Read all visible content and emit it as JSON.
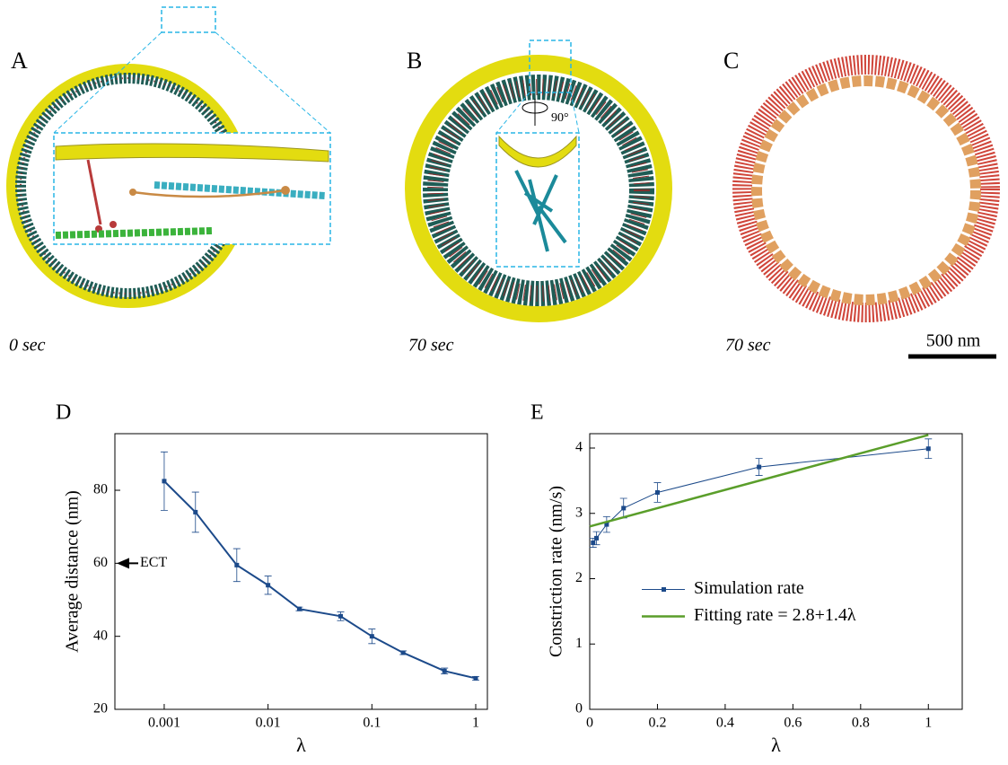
{
  "panels": [
    {
      "label": "A",
      "time": "0 sec"
    },
    {
      "label": "B",
      "time": "70 sec",
      "rotation": "90°"
    },
    {
      "label": "C",
      "time": "70 sec",
      "scale_bar": "500 nm"
    }
  ],
  "chart_data": [
    {
      "type": "line",
      "panel_label": "D",
      "x_label": "λ",
      "y_label": "Average distance (nm)",
      "log_x": true,
      "xlim": [
        0.000335,
        1.295
      ],
      "ylim": [
        20,
        95.5
      ],
      "xticks": [
        0.001,
        0.01,
        0.1,
        1
      ],
      "yticks": [
        20,
        40,
        60,
        80
      ],
      "series": [
        {
          "name": null,
          "color": "#1c4a8a",
          "line_width": 2,
          "x": [
            0.001,
            0.002,
            0.005,
            0.01,
            0.02,
            0.05,
            0.1,
            0.2,
            0.5,
            1
          ],
          "values": [
            82.5,
            74,
            59.5,
            54,
            47.5,
            45.5,
            40,
            35.5,
            30.5,
            28.5
          ],
          "errors": [
            8,
            5.5,
            4.5,
            2.5,
            0.5,
            1.2,
            2,
            0.5,
            0.8,
            0.5
          ]
        }
      ],
      "annotations": [
        {
          "text": "ECT",
          "y": 60
        }
      ]
    },
    {
      "type": "line",
      "panel_label": "E",
      "x_label": "λ",
      "y_label": "Constriction rate (nm/s)",
      "log_x": false,
      "xlim": [
        0,
        1.1
      ],
      "ylim": [
        0,
        4.22
      ],
      "xticks": [
        0,
        0.2,
        0.4,
        0.6,
        0.8,
        1
      ],
      "yticks": [
        0,
        1,
        2,
        3,
        4
      ],
      "legend": "center left",
      "series": [
        {
          "name": "Simulation rate",
          "color": "#1c4a8a",
          "line_width": 1,
          "x": [
            0.01,
            0.02,
            0.05,
            0.1,
            0.2,
            0.5,
            1
          ],
          "values": [
            2.55,
            2.62,
            2.83,
            3.08,
            3.32,
            3.71,
            3.99
          ],
          "errors": [
            0.07,
            0.1,
            0.12,
            0.15,
            0.15,
            0.13,
            0.15
          ]
        },
        {
          "name": "Fitting rate = 2.8+1.4λ",
          "color": "#5a9e2a",
          "line_width": 2.5,
          "x": [
            0,
            1
          ],
          "values": [
            2.8,
            4.2
          ]
        }
      ]
    }
  ]
}
